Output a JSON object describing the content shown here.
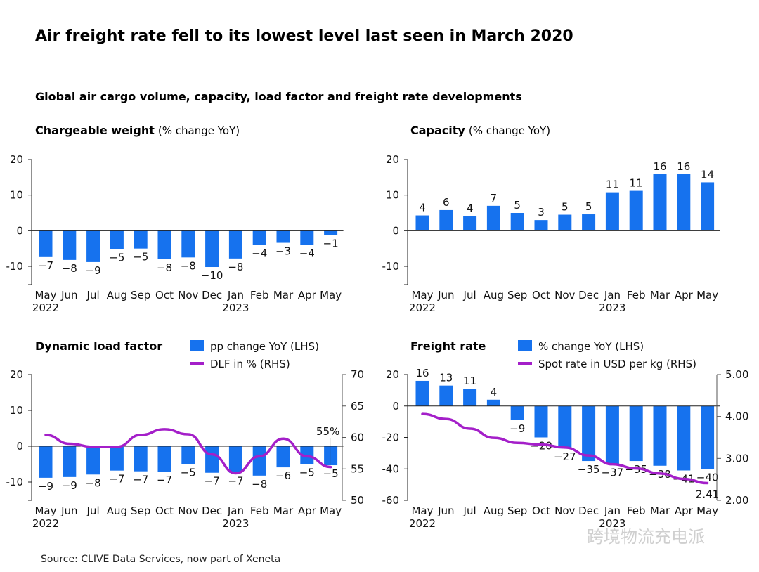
{
  "title": "Air freight rate fell to its lowest level last seen in March 2020",
  "subtitle": "Global air cargo volume, capacity, load factor and freight rate developments",
  "source": "Source: CLIVE Data Services, now part of Xeneta",
  "watermark": "跨境物流充电派",
  "colors": {
    "bar": "#1672ee",
    "line": "#a41fc9",
    "axis": "#222222"
  },
  "chart_data": [
    {
      "type": "bar",
      "title": "Chargeable weight",
      "unit": "(% change YoY)",
      "categories": [
        "May",
        "Jun",
        "Jul",
        "Aug",
        "Sep",
        "Oct",
        "Nov",
        "Dec",
        "Jan",
        "Feb",
        "Mar",
        "Apr",
        "May"
      ],
      "years": [
        "2022",
        "2023"
      ],
      "values": [
        -7.4,
        -8.2,
        -8.8,
        -5.2,
        -5,
        -8,
        -7.5,
        -10.2,
        -7.8,
        -4,
        -3.4,
        -4,
        -1.2
      ],
      "labels": [
        "-7",
        "-8",
        "-9",
        "-5",
        "-5",
        "-8",
        "-8",
        "-10",
        "-8",
        "-4",
        "-3",
        "-4",
        "-1"
      ],
      "yticks": [
        20,
        10,
        0,
        -10
      ],
      "ylim": [
        -15,
        20
      ]
    },
    {
      "type": "bar",
      "title": "Capacity",
      "unit": "(% change YoY)",
      "categories": [
        "May",
        "Jun",
        "Jul",
        "Aug",
        "Sep",
        "Oct",
        "Nov",
        "Dec",
        "Jan",
        "Feb",
        "Mar",
        "Apr",
        "May"
      ],
      "years": [
        "2022",
        "2023"
      ],
      "values": [
        4.3,
        5.8,
        4.1,
        7,
        5,
        3,
        4.5,
        4.6,
        10.8,
        11.2,
        15.9,
        15.9,
        13.6
      ],
      "labels": [
        "4",
        "6",
        "4",
        "7",
        "5",
        "3",
        "5",
        "5",
        "11",
        "11",
        "16",
        "16",
        "14"
      ],
      "yticks": [
        20,
        10,
        0,
        -10
      ],
      "ylim": [
        -15,
        20
      ]
    },
    {
      "type": "bar+line",
      "title": "Dynamic load factor",
      "categories": [
        "May",
        "Jun",
        "Jul",
        "Aug",
        "Sep",
        "Oct",
        "Nov",
        "Dec",
        "Jan",
        "Feb",
        "Mar",
        "Apr",
        "May"
      ],
      "years": [
        "2022",
        "2023"
      ],
      "legend": [
        "pp change YoY (LHS)",
        "DLF in % (RHS)"
      ],
      "values": [
        -8.8,
        -8.6,
        -7.9,
        -6.8,
        -7,
        -7.1,
        -5,
        -7.4,
        -7.4,
        -8.2,
        -5.9,
        -5,
        -5.3
      ],
      "labels": [
        "-9",
        "-9",
        "-8",
        "-7",
        "-7",
        "-7",
        "-5",
        "-7",
        "-7",
        "-8",
        "-6",
        "-5",
        "-5"
      ],
      "line_values": [
        60.4,
        59,
        58.5,
        58.5,
        60.4,
        61.3,
        60.5,
        57.3,
        54.3,
        57,
        59.8,
        57,
        55.3
      ],
      "line_end_label": "55%",
      "yticks": [
        20,
        10,
        0,
        -10
      ],
      "ylim": [
        -15,
        20
      ],
      "y2ticks": [
        70,
        65,
        60,
        55,
        50
      ],
      "y2lim": [
        50,
        70
      ]
    },
    {
      "type": "bar+line",
      "title": "Freight rate",
      "categories": [
        "May",
        "Jun",
        "Jul",
        "Aug",
        "Sep",
        "Oct",
        "Nov",
        "Dec",
        "Jan",
        "Feb",
        "Mar",
        "Apr",
        "May"
      ],
      "years": [
        "2022",
        "2023"
      ],
      "legend": [
        "% change YoY (LHS)",
        "Spot rate in USD per kg (RHS)"
      ],
      "values": [
        16,
        13,
        11,
        4,
        -9,
        -20,
        -27,
        -35,
        -37,
        -35,
        -38,
        -41,
        -40
      ],
      "labels": [
        "16",
        "13",
        "11",
        "4",
        "-9",
        "-20",
        "-27",
        "-35",
        "-37",
        "-35",
        "-38",
        "-41",
        "-40"
      ],
      "line_values": [
        4.06,
        3.94,
        3.71,
        3.49,
        3.37,
        3.33,
        3.26,
        3.07,
        2.86,
        2.76,
        2.64,
        2.51,
        2.41
      ],
      "line_end_label": "2.41",
      "yticks": [
        20,
        0,
        -20,
        -40,
        -60
      ],
      "ylim": [
        -60,
        20
      ],
      "y2ticks": [
        "5.00",
        "4.00",
        "3.00",
        "2.00"
      ],
      "y2lim": [
        2,
        5
      ]
    }
  ]
}
